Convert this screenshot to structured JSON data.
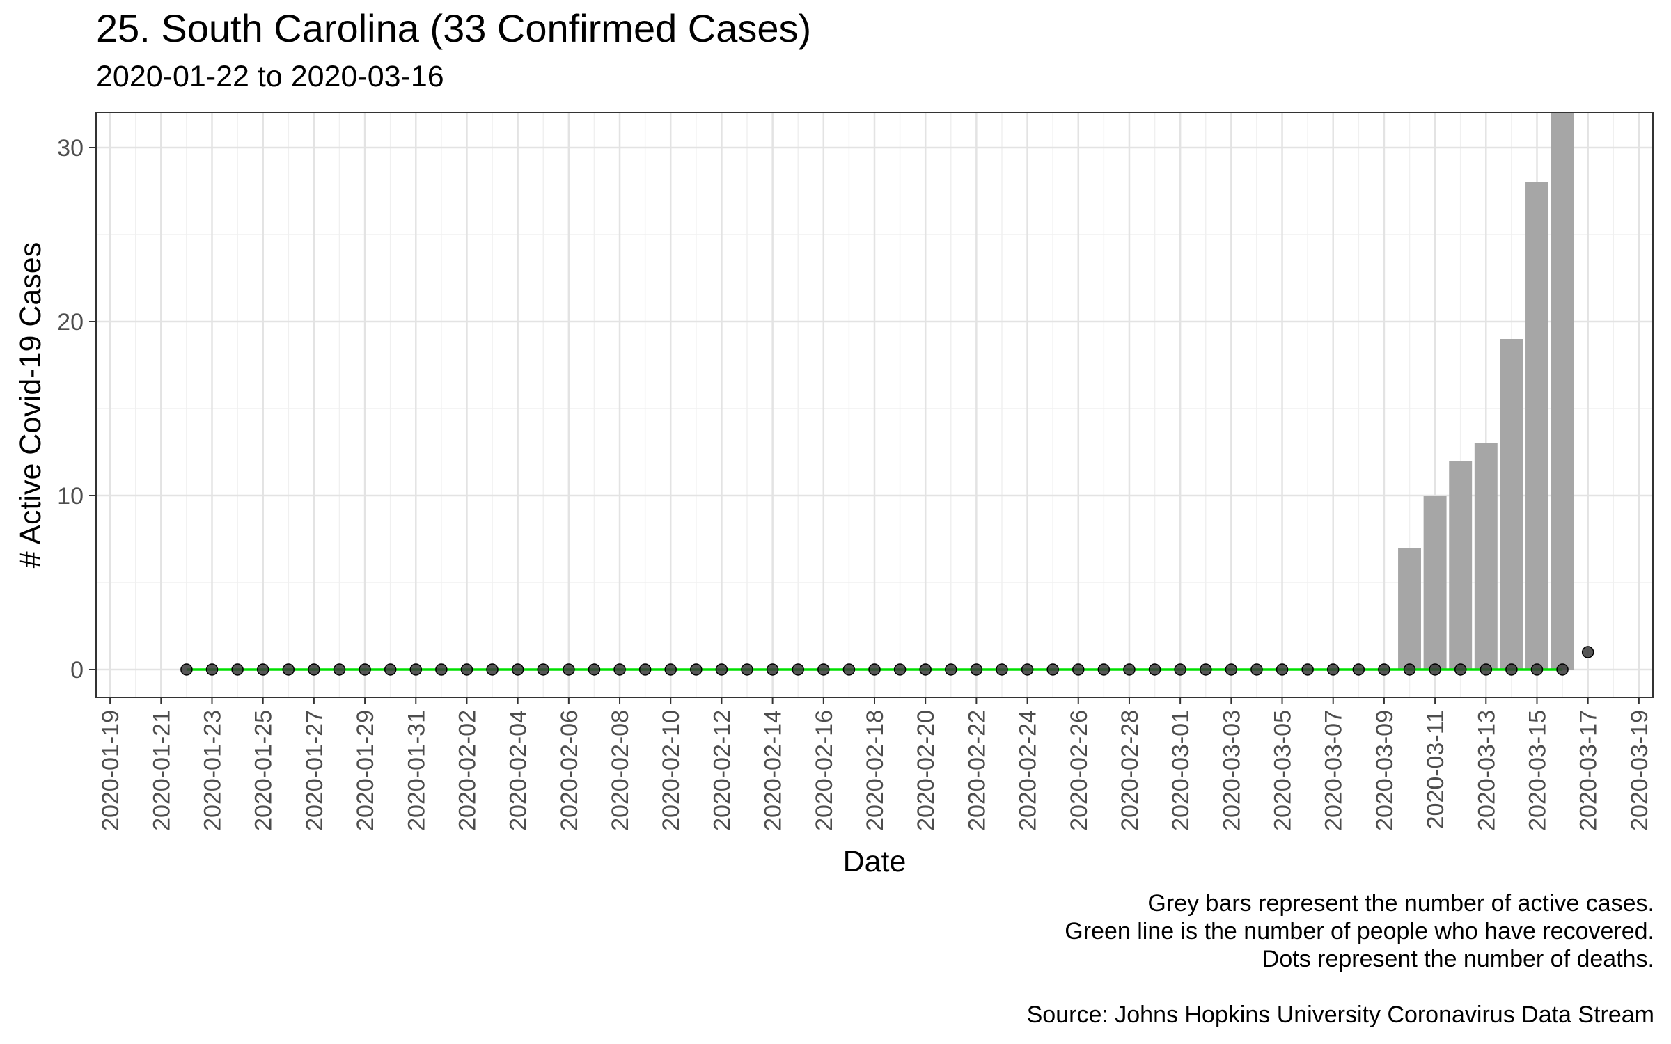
{
  "chart_data": {
    "type": "bar",
    "title": "25. South Carolina (33 Confirmed Cases)",
    "subtitle": "2020-01-22 to 2020-03-16",
    "xlabel": "Date",
    "ylabel": "# Active Covid-19 Cases",
    "x_range": [
      "2020-01-19",
      "2020-03-19"
    ],
    "ylim": [
      -1.6,
      32
    ],
    "y_ticks": [
      0,
      10,
      20,
      30
    ],
    "x_tick_labels": [
      "2020-01-19",
      "2020-01-21",
      "2020-01-23",
      "2020-01-25",
      "2020-01-27",
      "2020-01-29",
      "2020-01-31",
      "2020-02-02",
      "2020-02-04",
      "2020-02-06",
      "2020-02-08",
      "2020-02-10",
      "2020-02-12",
      "2020-02-14",
      "2020-02-16",
      "2020-02-18",
      "2020-02-20",
      "2020-02-22",
      "2020-02-24",
      "2020-02-26",
      "2020-02-28",
      "2020-03-01",
      "2020-03-03",
      "2020-03-05",
      "2020-03-07",
      "2020-03-09",
      "2020-03-11",
      "2020-03-13",
      "2020-03-15",
      "2020-03-17",
      "2020-03-19"
    ],
    "grid": true,
    "legend": "none",
    "start_date": "2020-01-22",
    "series": [
      {
        "name": "Active cases",
        "type": "bar",
        "color": "#a6a6a6",
        "points": [
          {
            "date": "2020-03-10",
            "value": 7
          },
          {
            "date": "2020-03-11",
            "value": 10
          },
          {
            "date": "2020-03-12",
            "value": 12
          },
          {
            "date": "2020-03-13",
            "value": 13
          },
          {
            "date": "2020-03-14",
            "value": 19
          },
          {
            "date": "2020-03-15",
            "value": 28
          },
          {
            "date": "2020-03-16",
            "value": 32
          }
        ]
      },
      {
        "name": "Recovered",
        "type": "line",
        "color": "#00e000",
        "start": "2020-01-22",
        "end": "2020-03-16",
        "value": 0
      },
      {
        "name": "Deaths",
        "type": "scatter",
        "color": "#3a3a3a",
        "start": "2020-01-22",
        "values": [
          0,
          0,
          0,
          0,
          0,
          0,
          0,
          0,
          0,
          0,
          0,
          0,
          0,
          0,
          0,
          0,
          0,
          0,
          0,
          0,
          0,
          0,
          0,
          0,
          0,
          0,
          0,
          0,
          0,
          0,
          0,
          0,
          0,
          0,
          0,
          0,
          0,
          0,
          0,
          0,
          0,
          0,
          0,
          0,
          0,
          0,
          0,
          0,
          0,
          0,
          0,
          0,
          0,
          0,
          0,
          1
        ]
      }
    ]
  },
  "caption": {
    "lines": [
      "Grey bars represent the number of active cases.",
      "Green line is the number of people who have recovered.",
      "Dots represent the number of deaths."
    ],
    "source": "Source: Johns Hopkins University Coronavirus Data Stream"
  }
}
